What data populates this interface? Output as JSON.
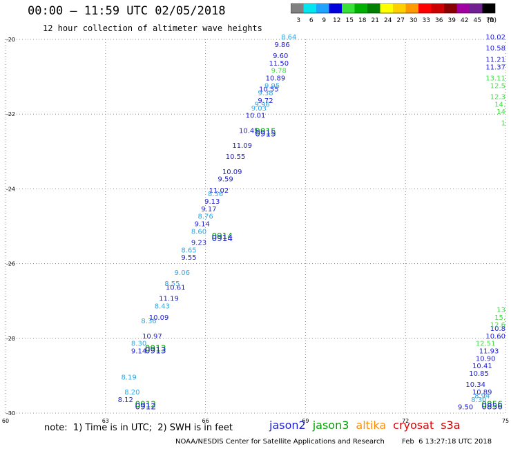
{
  "header": {
    "title": "00:00 – 11:59 UTC 02/05/2018",
    "subtitle": "12 hour collection of altimeter wave heights"
  },
  "colorbar": {
    "labels": [
      "3",
      "6",
      "9",
      "12",
      "15",
      "18",
      "21",
      "24",
      "27",
      "30",
      "33",
      "36",
      "39",
      "42",
      "45",
      "70"
    ],
    "unit": "(ft)",
    "colors": [
      "#808080",
      "#00e5ee",
      "#1fa3ff",
      "#0000dd",
      "#38e038",
      "#00b000",
      "#008000",
      "#ffff00",
      "#ffd000",
      "#ff9900",
      "#ff0000",
      "#cc0000",
      "#880000",
      "#a000a0",
      "#702090",
      "#000000"
    ]
  },
  "note": "note:  1) Time is in UTC;  2) SWH is in feet",
  "legend": [
    {
      "name": "jason2",
      "color": "#1c1cd0"
    },
    {
      "name": "jason3",
      "color": "#00a000"
    },
    {
      "name": "altika",
      "color": "#ff8c00"
    },
    {
      "name": "cryosat",
      "color": "#e00000"
    },
    {
      "name": "s3a",
      "color": "#c00000"
    }
  ],
  "credit": "NOAA/NESDIS Center for Satellite Applications and Research",
  "timestamp": "Feb  6 13:27:18 UTC 2018",
  "chart_data": {
    "type": "scatter",
    "xlim": [
      60,
      75
    ],
    "ylim": [
      -30,
      -20
    ],
    "xticks": [
      "60",
      "63",
      "66",
      "69",
      "72",
      "75"
    ],
    "yticks": [
      "-20",
      "-22",
      "-24",
      "-26",
      "-28",
      "-30"
    ],
    "grid": true,
    "series": [
      {
        "name": "jason2",
        "color": "#1c1cd0",
        "points": [
          {
            "x": 68.3,
            "y": -20.2,
            "label": "9.86"
          },
          {
            "x": 68.25,
            "y": -20.5,
            "label": "9.60"
          },
          {
            "x": 68.2,
            "y": -20.7,
            "label": "11.50"
          },
          {
            "x": 68.1,
            "y": -21.1,
            "label": "10.89"
          },
          {
            "x": 67.9,
            "y": -21.4,
            "label": "10.55"
          },
          {
            "x": 67.8,
            "y": -21.7,
            "label": "9.72"
          },
          {
            "x": 67.5,
            "y": -22.1,
            "label": "10.01"
          },
          {
            "x": 67.3,
            "y": -22.5,
            "label": "10.45"
          },
          {
            "x": 67.1,
            "y": -22.9,
            "label": "11.09"
          },
          {
            "x": 66.9,
            "y": -23.2,
            "label": "10.55"
          },
          {
            "x": 66.8,
            "y": -23.6,
            "label": "10.09"
          },
          {
            "x": 66.6,
            "y": -23.8,
            "label": "9.59"
          },
          {
            "x": 66.4,
            "y": -24.1,
            "label": "11.02"
          },
          {
            "x": 66.2,
            "y": -24.4,
            "label": "9.13"
          },
          {
            "x": 66.1,
            "y": -24.6,
            "label": "9.17"
          },
          {
            "x": 65.9,
            "y": -25.0,
            "label": "9.14"
          },
          {
            "x": 65.8,
            "y": -25.5,
            "label": "9.23"
          },
          {
            "x": 65.5,
            "y": -25.9,
            "label": "9.55"
          },
          {
            "x": 65.1,
            "y": -26.7,
            "label": "10.61"
          },
          {
            "x": 64.9,
            "y": -27.0,
            "label": "11.19"
          },
          {
            "x": 64.6,
            "y": -27.5,
            "label": "10.09"
          },
          {
            "x": 64.4,
            "y": -28.0,
            "label": "10.97"
          },
          {
            "x": 64.0,
            "y": -28.4,
            "label": "9.14"
          },
          {
            "x": 63.6,
            "y": -29.7,
            "label": "8.12"
          },
          {
            "x": 75.0,
            "y": -20.0,
            "label": "10.02"
          },
          {
            "x": 75.0,
            "y": -20.3,
            "label": "10.58"
          },
          {
            "x": 75.0,
            "y": -20.6,
            "label": "11.21"
          },
          {
            "x": 75.0,
            "y": -20.8,
            "label": "11.37"
          },
          {
            "x": 75.0,
            "y": -27.8,
            "label": "10.8"
          },
          {
            "x": 75.0,
            "y": -28.0,
            "label": "10.60"
          },
          {
            "x": 74.8,
            "y": -28.4,
            "label": "11.93"
          },
          {
            "x": 74.7,
            "y": -28.6,
            "label": "10.90"
          },
          {
            "x": 74.6,
            "y": -28.8,
            "label": "10.41"
          },
          {
            "x": 74.5,
            "y": -29.0,
            "label": "10.85"
          },
          {
            "x": 74.4,
            "y": -29.3,
            "label": "10.34"
          },
          {
            "x": 74.3,
            "y": -29.5,
            "label": "10.89"
          },
          {
            "x": 73.8,
            "y": -29.9,
            "label": "9.50"
          }
        ]
      },
      {
        "name": "jason2-light",
        "color": "#2aa8e8",
        "points": [
          {
            "x": 68.5,
            "y": -20.0,
            "label": "8.64"
          },
          {
            "x": 68.0,
            "y": -21.3,
            "label": "9.95"
          },
          {
            "x": 67.8,
            "y": -21.5,
            "label": "9.38"
          },
          {
            "x": 67.7,
            "y": -21.8,
            "label": "9.96"
          },
          {
            "x": 67.6,
            "y": -21.9,
            "label": "9.03"
          },
          {
            "x": 66.3,
            "y": -24.2,
            "label": "8.56"
          },
          {
            "x": 66.0,
            "y": -24.8,
            "label": "8.76"
          },
          {
            "x": 65.8,
            "y": -25.2,
            "label": "8.60"
          },
          {
            "x": 65.5,
            "y": -25.7,
            "label": "8.65"
          },
          {
            "x": 65.3,
            "y": -26.3,
            "label": "9.06"
          },
          {
            "x": 65.0,
            "y": -26.6,
            "label": "8.55"
          },
          {
            "x": 64.7,
            "y": -27.2,
            "label": "8.43"
          },
          {
            "x": 64.3,
            "y": -27.6,
            "label": "8.36"
          },
          {
            "x": 64.0,
            "y": -28.2,
            "label": "8.30"
          },
          {
            "x": 63.7,
            "y": -29.1,
            "label": "8.19"
          },
          {
            "x": 63.8,
            "y": -29.5,
            "label": "8.20"
          },
          {
            "x": 74.2,
            "y": -29.7,
            "label": "8.30"
          },
          {
            "x": 74.3,
            "y": -29.6,
            "label": "8.94"
          }
        ]
      },
      {
        "name": "jason3",
        "color": "#44dd44",
        "points": [
          {
            "x": 68.2,
            "y": -20.9,
            "label": "9.78"
          },
          {
            "x": 75.0,
            "y": -21.1,
            "label": "13.11"
          },
          {
            "x": 75.0,
            "y": -21.3,
            "label": "12.5"
          },
          {
            "x": 75.0,
            "y": -21.6,
            "label": "12.3"
          },
          {
            "x": 75.0,
            "y": -21.8,
            "label": "14."
          },
          {
            "x": 75.0,
            "y": -22.0,
            "label": "14"
          },
          {
            "x": 75.0,
            "y": -22.3,
            "label": "1"
          },
          {
            "x": 75.0,
            "y": -27.3,
            "label": "13"
          },
          {
            "x": 75.0,
            "y": -27.5,
            "label": "15."
          },
          {
            "x": 75.0,
            "y": -27.7,
            "label": "12.6"
          },
          {
            "x": 74.7,
            "y": -28.2,
            "label": "12.51"
          }
        ]
      }
    ],
    "passes": [
      {
        "x": 67.8,
        "y": -22.6,
        "label": "0915"
      },
      {
        "x": 66.5,
        "y": -25.4,
        "label": "0914"
      },
      {
        "x": 64.5,
        "y": -28.4,
        "label": "0913"
      },
      {
        "x": 64.2,
        "y": -29.9,
        "label": "0912"
      },
      {
        "x": 74.6,
        "y": -29.9,
        "label": "0856"
      }
    ]
  }
}
